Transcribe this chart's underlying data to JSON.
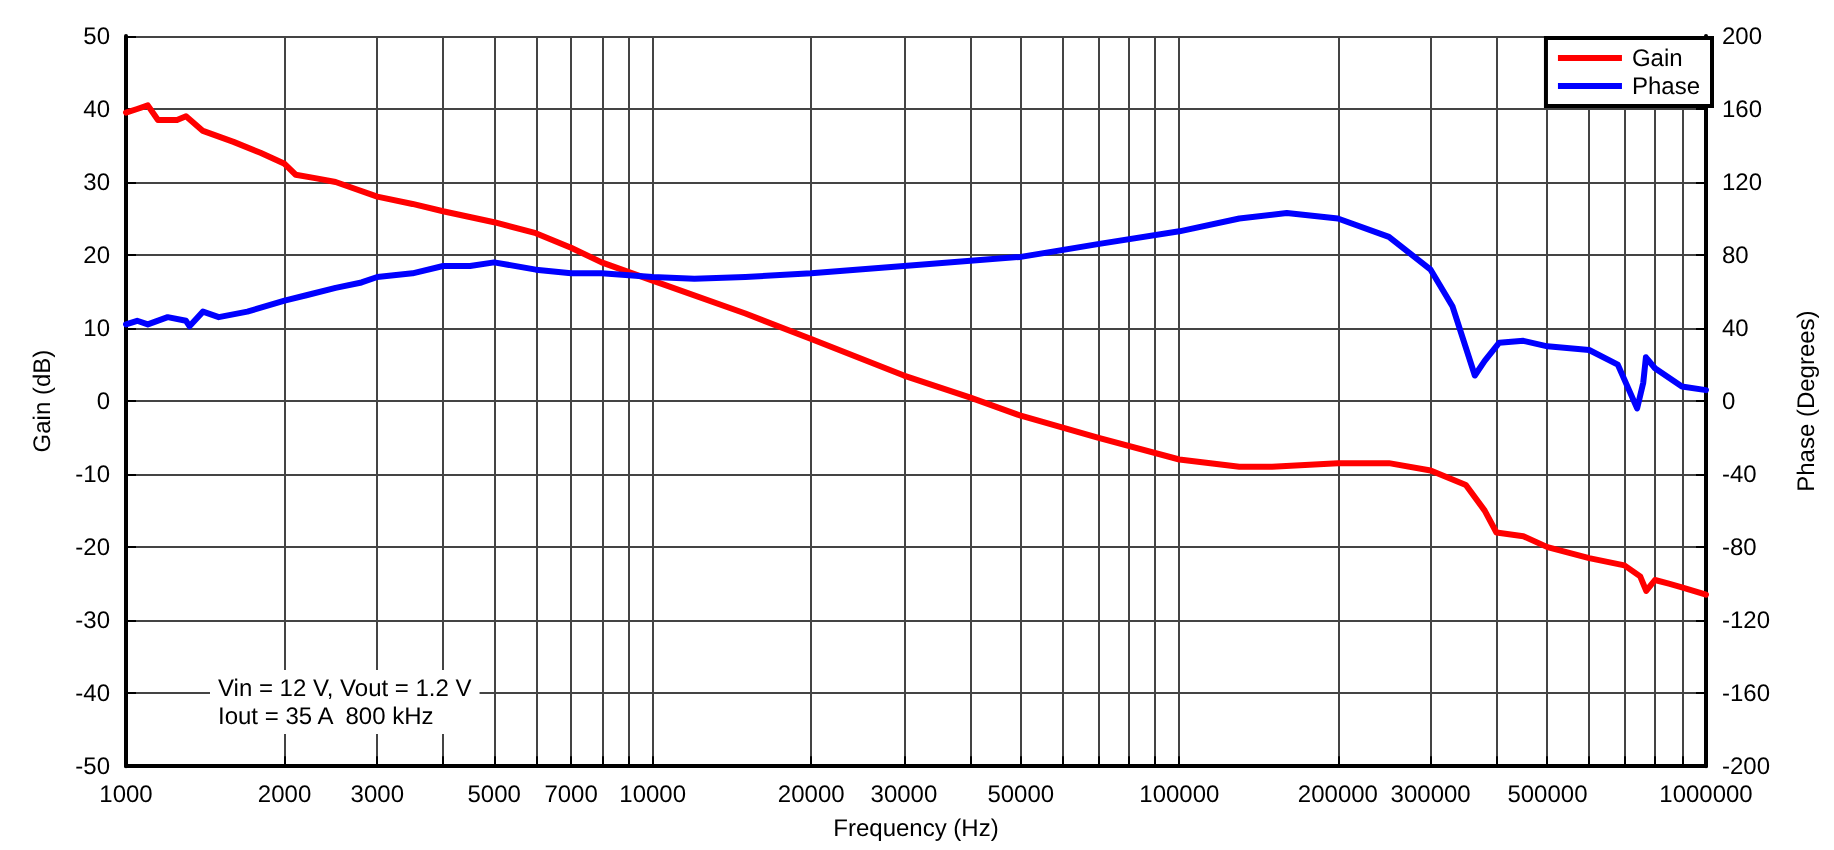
{
  "chart_data": {
    "type": "line",
    "xlabel": "Frequency (Hz)",
    "ylabel": "Gain (dB)",
    "y2label": "Phase (Degrees)",
    "log": "x",
    "grid": true,
    "legend": "top right",
    "marker": "none",
    "line_style": "solid",
    "xlim": [
      1000,
      1000000
    ],
    "xticks": [
      1000,
      2000,
      3000,
      {
        "value": 4000,
        "label": null
      },
      5000,
      {
        "value": 6000,
        "label": null
      },
      7000,
      {
        "value": 8000,
        "label": null
      },
      {
        "value": 9000,
        "label": null
      },
      10000,
      20000,
      30000,
      {
        "value": 40000,
        "label": null
      },
      50000,
      {
        "value": 60000,
        "label": null
      },
      {
        "value": 70000,
        "label": null
      },
      {
        "value": 80000,
        "label": null
      },
      {
        "value": 90000,
        "label": null
      },
      100000,
      200000,
      300000,
      {
        "value": 400000,
        "label": null
      },
      500000,
      {
        "value": 600000,
        "label": null
      },
      {
        "value": 700000,
        "label": null
      },
      {
        "value": 800000,
        "label": null
      },
      {
        "value": 900000,
        "label": null
      },
      1000000
    ],
    "ylim": [
      -50,
      50
    ],
    "yticks": [
      -50,
      -40,
      -30,
      -20,
      -10,
      0,
      10,
      20,
      30,
      40,
      50
    ],
    "y2lim": [
      -200,
      200
    ],
    "y2ticks": [
      -200,
      -160,
      -120,
      -80,
      -40,
      0,
      40,
      80,
      120,
      160,
      200
    ],
    "annotations": [
      "Vin = 12 V, Vout = 1.2 V",
      "Iout = 35 A  800 kHz"
    ],
    "series": [
      {
        "name": "Gain",
        "color": "#ff0000",
        "x": [
          1000,
          1050,
          1100,
          1150,
          1250,
          1300,
          1400,
          1600,
          1800,
          2000,
          2100,
          2300,
          2500,
          3000,
          3500,
          4000,
          5000,
          6000,
          7000,
          8000,
          10000,
          15000,
          20000,
          30000,
          40000,
          50000,
          70000,
          100000,
          130000,
          150000,
          200000,
          250000,
          300000,
          350000,
          380000,
          400000,
          450000,
          500000,
          600000,
          700000,
          750000,
          770000,
          800000,
          850000,
          900000,
          1000000
        ],
        "values": [
          39.5,
          40,
          40.5,
          38.5,
          38.5,
          39,
          37,
          35.5,
          34,
          32.5,
          31,
          30.5,
          30,
          28,
          27,
          26,
          24.5,
          23,
          21,
          19,
          16.5,
          12,
          8.5,
          3.5,
          0.5,
          -2,
          -5,
          -8,
          -9,
          -9,
          -8.5,
          -8.5,
          -9.5,
          -11.5,
          -15,
          -18,
          -18.5,
          -20,
          -21.5,
          -22.5,
          -24,
          -26,
          -24.5,
          -25,
          -25.5,
          -26.5
        ]
      },
      {
        "name": "Phase",
        "color": "#0000ff",
        "axis": "y2",
        "x": [
          1000,
          1050,
          1100,
          1200,
          1300,
          1320,
          1400,
          1500,
          1700,
          2000,
          2200,
          2500,
          2800,
          3000,
          3500,
          4000,
          4500,
          5000,
          6000,
          7000,
          8000,
          10000,
          12000,
          15000,
          20000,
          30000,
          50000,
          70000,
          100000,
          130000,
          160000,
          200000,
          250000,
          300000,
          330000,
          364000,
          380000,
          405000,
          450000,
          500000,
          600000,
          680000,
          740000,
          760000,
          769000,
          800000,
          900000,
          1000000
        ],
        "values": [
          42,
          44,
          42,
          46,
          44,
          41,
          49,
          46,
          49,
          55,
          58,
          62,
          65,
          68,
          70,
          74,
          74,
          76,
          72,
          70,
          70,
          68,
          67,
          68,
          70,
          74,
          79,
          86,
          93,
          100,
          103,
          100,
          90,
          72,
          52,
          14,
          22,
          32,
          33,
          30,
          28,
          20,
          -4,
          10,
          24,
          18,
          8,
          6
        ]
      }
    ]
  }
}
